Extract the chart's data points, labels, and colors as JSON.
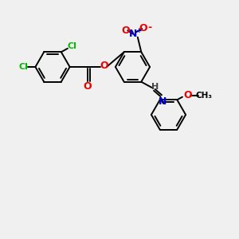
{
  "bg_color": "#f0f0f0",
  "bond_color": "#000000",
  "cl_color": "#00bb00",
  "o_color": "#ee0000",
  "n_color": "#0000cc",
  "h_color": "#444444",
  "line_width": 1.4,
  "figsize": [
    3.0,
    3.0
  ],
  "dpi": 100,
  "ring_r": 0.72,
  "xlim": [
    0,
    10
  ],
  "ylim": [
    0,
    10
  ]
}
